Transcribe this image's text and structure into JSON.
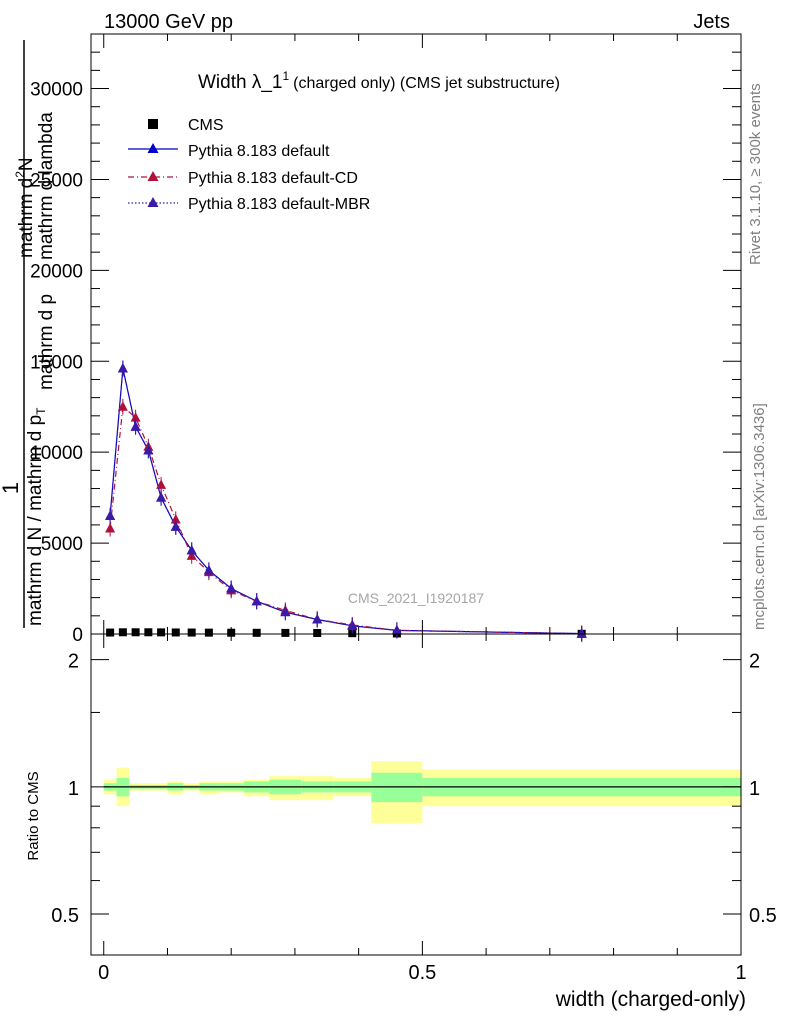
{
  "header": {
    "left": "13000 GeV pp",
    "right": "Jets"
  },
  "side_labels": {
    "rivet": "Rivet 3.1.10, ≥ 300k events",
    "mcplots": "mcplots.cern.ch [arXiv:1306.3436]"
  },
  "watermark": "CMS_2021_I1920187",
  "colors": {
    "cms": "#000000",
    "default": "#0000cc",
    "cd": "#b0103a",
    "mbr": "#3a1aa8",
    "band_inner": "#99ff99",
    "band_outer": "#ffff99"
  },
  "chart_data": [
    {
      "type": "line",
      "title": "Width λ_1",
      "title_sup": "1",
      "title_suffix": "(charged only) (CMS jet substructure)",
      "ylabel_parts": [
        "1",
        "mathrm d N / mathrm d p",
        "T",
        "mathrm d p",
        "mathrm d lambda",
        "mathrm d",
        "2",
        "N"
      ],
      "ylim": [
        0,
        33000
      ],
      "yticks": [
        0,
        5000,
        10000,
        15000,
        20000,
        25000,
        30000
      ],
      "ytick_labels": [
        "0",
        "5000",
        "10000",
        "15000",
        "20000",
        "25000",
        "30000"
      ],
      "xlim": [
        -0.02,
        1.0
      ],
      "x": [
        0.01,
        0.03,
        0.05,
        0.07,
        0.09,
        0.113,
        0.138,
        0.165,
        0.2,
        0.24,
        0.285,
        0.335,
        0.39,
        0.46,
        0.75
      ],
      "series": [
        {
          "name": "CMS",
          "style": "markers",
          "values": [
            80,
            95,
            95,
            95,
            90,
            85,
            80,
            75,
            70,
            65,
            60,
            55,
            45,
            30,
            10
          ]
        },
        {
          "name": "Pythia 8.183 default",
          "style": "solid",
          "values": [
            6500,
            14600,
            11400,
            10100,
            7500,
            5900,
            4600,
            3500,
            2500,
            1800,
            1200,
            800,
            450,
            200,
            20
          ]
        },
        {
          "name": "Pythia 8.183 default-CD",
          "style": "dashdot",
          "values": [
            5800,
            12500,
            11900,
            10300,
            8200,
            6300,
            4300,
            3400,
            2400,
            1800,
            1300,
            800,
            500,
            200,
            20
          ]
        },
        {
          "name": "Pythia 8.183 default-MBR",
          "style": "dotted",
          "values": [
            6500,
            14600,
            11400,
            10100,
            7500,
            5900,
            4600,
            3500,
            2500,
            1800,
            1200,
            800,
            450,
            200,
            20
          ]
        }
      ]
    },
    {
      "type": "area",
      "ylabel": "Ratio to CMS",
      "xlabel": "width (charged-only)",
      "ylim": [
        0.4,
        2.3
      ],
      "log_y": true,
      "yticks": [
        0.5,
        1,
        2
      ],
      "ytick_labels": [
        "0.5",
        "1",
        "2"
      ],
      "xticks": [
        0,
        0.5,
        1
      ],
      "xtick_labels": [
        "0",
        "0.5",
        "1"
      ],
      "bins": [
        {
          "x0": 0.0,
          "x1": 0.02,
          "inner": [
            0.98,
            1.02
          ],
          "outer": [
            0.96,
            1.04
          ]
        },
        {
          "x0": 0.02,
          "x1": 0.04,
          "inner": [
            0.95,
            1.05
          ],
          "outer": [
            0.9,
            1.11
          ]
        },
        {
          "x0": 0.04,
          "x1": 0.06,
          "inner": [
            0.99,
            1.01
          ],
          "outer": [
            0.98,
            1.02
          ]
        },
        {
          "x0": 0.06,
          "x1": 0.08,
          "inner": [
            0.99,
            1.01
          ],
          "outer": [
            0.98,
            1.02
          ]
        },
        {
          "x0": 0.08,
          "x1": 0.1,
          "inner": [
            0.99,
            1.01
          ],
          "outer": [
            0.98,
            1.02
          ]
        },
        {
          "x0": 0.1,
          "x1": 0.125,
          "inner": [
            0.98,
            1.02
          ],
          "outer": [
            0.96,
            1.03
          ]
        },
        {
          "x0": 0.125,
          "x1": 0.15,
          "inner": [
            0.99,
            1.01
          ],
          "outer": [
            0.98,
            1.02
          ]
        },
        {
          "x0": 0.15,
          "x1": 0.18,
          "inner": [
            0.98,
            1.02
          ],
          "outer": [
            0.96,
            1.03
          ]
        },
        {
          "x0": 0.18,
          "x1": 0.22,
          "inner": [
            0.98,
            1.02
          ],
          "outer": [
            0.97,
            1.03
          ]
        },
        {
          "x0": 0.22,
          "x1": 0.26,
          "inner": [
            0.97,
            1.03
          ],
          "outer": [
            0.95,
            1.04
          ]
        },
        {
          "x0": 0.26,
          "x1": 0.31,
          "inner": [
            0.96,
            1.04
          ],
          "outer": [
            0.93,
            1.06
          ]
        },
        {
          "x0": 0.31,
          "x1": 0.36,
          "inner": [
            0.97,
            1.03
          ],
          "outer": [
            0.93,
            1.06
          ]
        },
        {
          "x0": 0.36,
          "x1": 0.42,
          "inner": [
            0.97,
            1.03
          ],
          "outer": [
            0.95,
            1.05
          ]
        },
        {
          "x0": 0.42,
          "x1": 0.5,
          "inner": [
            0.92,
            1.08
          ],
          "outer": [
            0.82,
            1.15
          ]
        },
        {
          "x0": 0.5,
          "x1": 1.0,
          "inner": [
            0.95,
            1.05
          ],
          "outer": [
            0.9,
            1.1
          ]
        }
      ],
      "series": [
        {
          "name": "Pythia 8.183 default",
          "values": [
            1.0,
            1.0,
            1.0,
            1.0,
            1.0,
            1.0,
            1.0,
            1.0,
            1.0,
            1.0,
            1.0,
            1.0,
            1.0,
            1.0,
            1.0
          ]
        }
      ]
    }
  ]
}
